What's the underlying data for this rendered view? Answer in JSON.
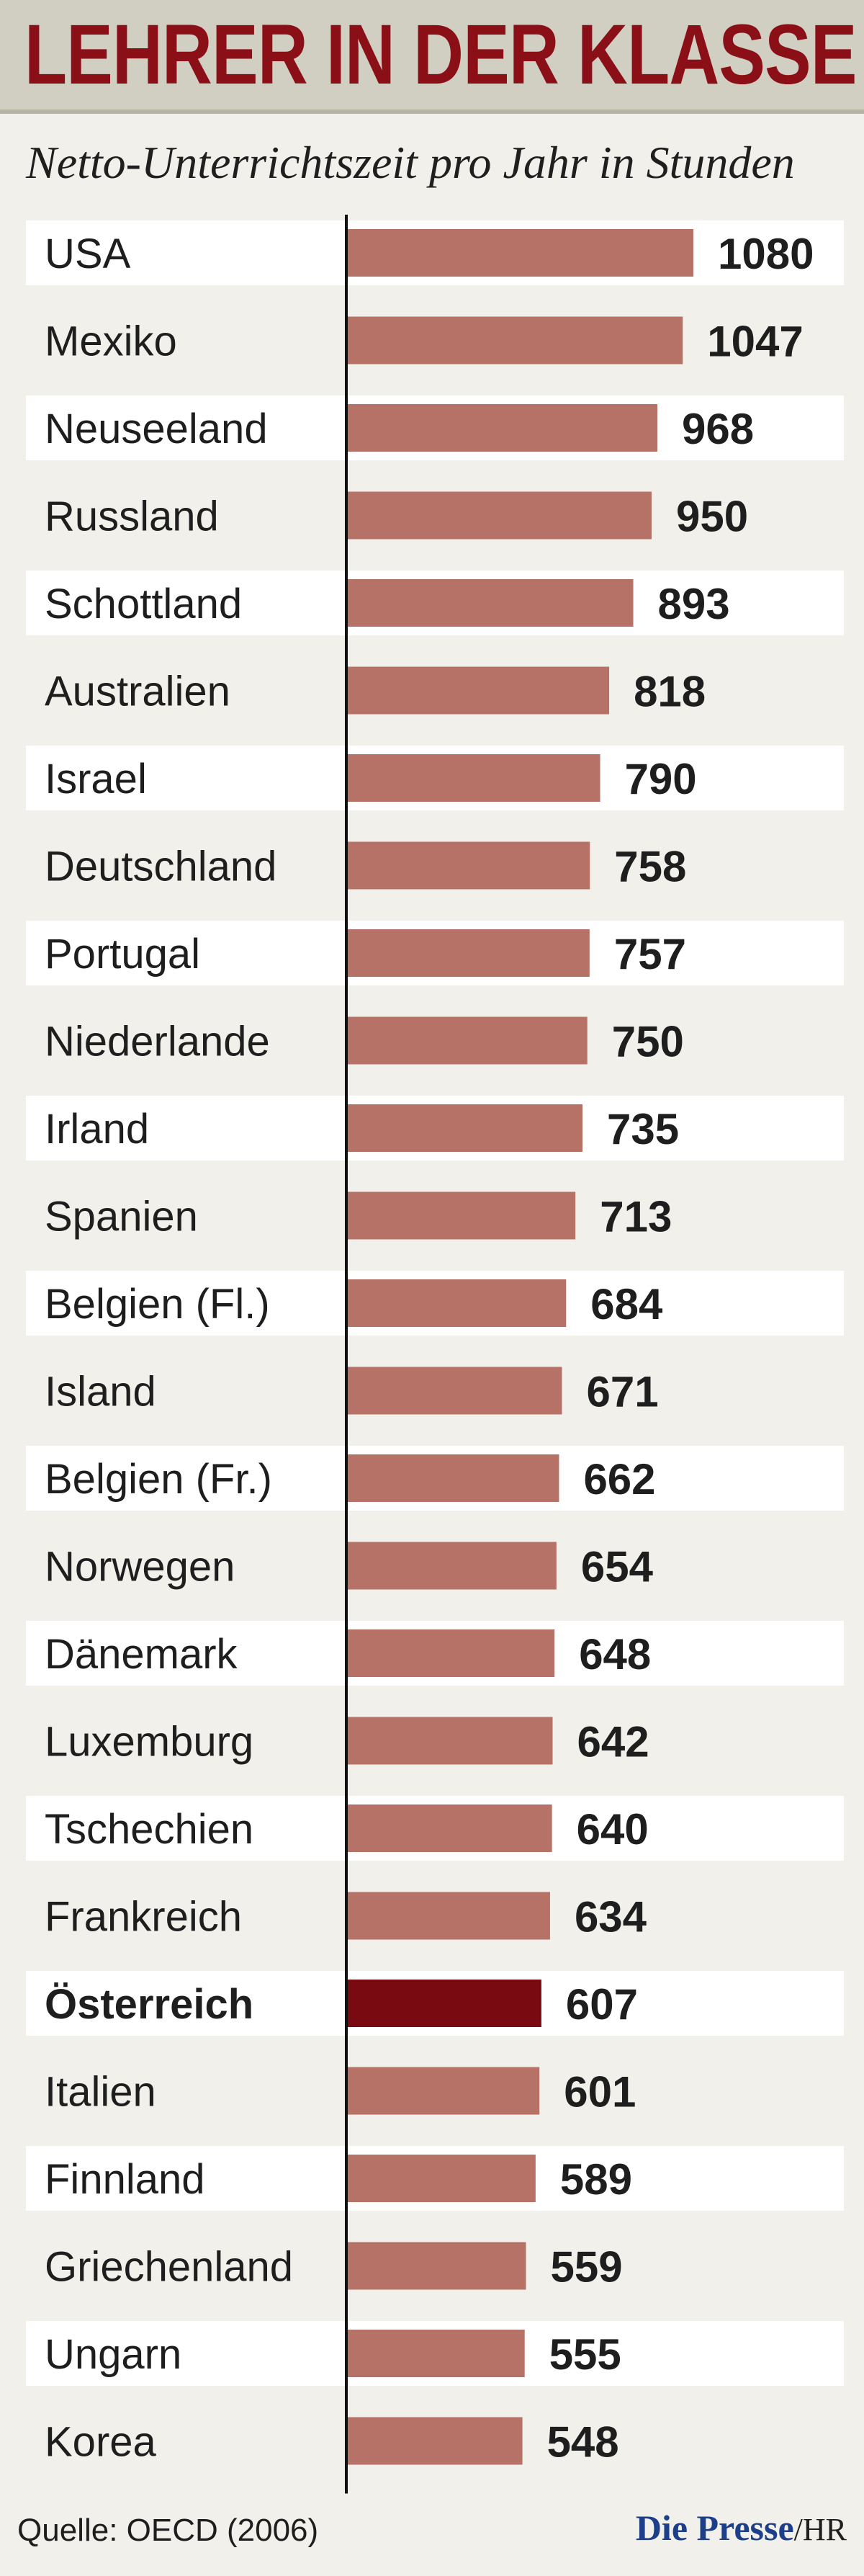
{
  "header": {
    "title": "LEHRER IN DER KLASSE",
    "subtitle": "Netto-Unterrichtszeit pro Jahr in Stunden"
  },
  "footer": {
    "source": "Quelle: OECD (2006)",
    "brand": "Die Presse",
    "author": "/HR"
  },
  "colors": {
    "bar": "#b77268",
    "highlight_bar": "#7a0a12",
    "title": "#8a0f16",
    "brand": "#1d3f8a"
  },
  "chart_data": {
    "type": "bar",
    "orientation": "horizontal",
    "title": "LEHRER IN DER KLASSE",
    "subtitle": "Netto-Unterrichtszeit pro Jahr in Stunden",
    "xlabel": "",
    "ylabel": "",
    "grid": false,
    "highlight": "Österreich",
    "categories": [
      "USA",
      "Mexiko",
      "Neuseeland",
      "Russland",
      "Schottland",
      "Australien",
      "Israel",
      "Deutschland",
      "Portugal",
      "Niederlande",
      "Irland",
      "Spanien",
      "Belgien (Fl.)",
      "Island",
      "Belgien (Fr.)",
      "Norwegen",
      "Dänemark",
      "Luxemburg",
      "Tschechien",
      "Frankreich",
      "Österreich",
      "Italien",
      "Finnland",
      "Griechenland",
      "Ungarn",
      "Korea"
    ],
    "values": [
      1080,
      1047,
      968,
      950,
      893,
      818,
      790,
      758,
      757,
      750,
      735,
      713,
      684,
      671,
      662,
      654,
      648,
      642,
      640,
      634,
      607,
      601,
      589,
      559,
      555,
      548
    ],
    "xlim": [
      0,
      1080
    ]
  }
}
